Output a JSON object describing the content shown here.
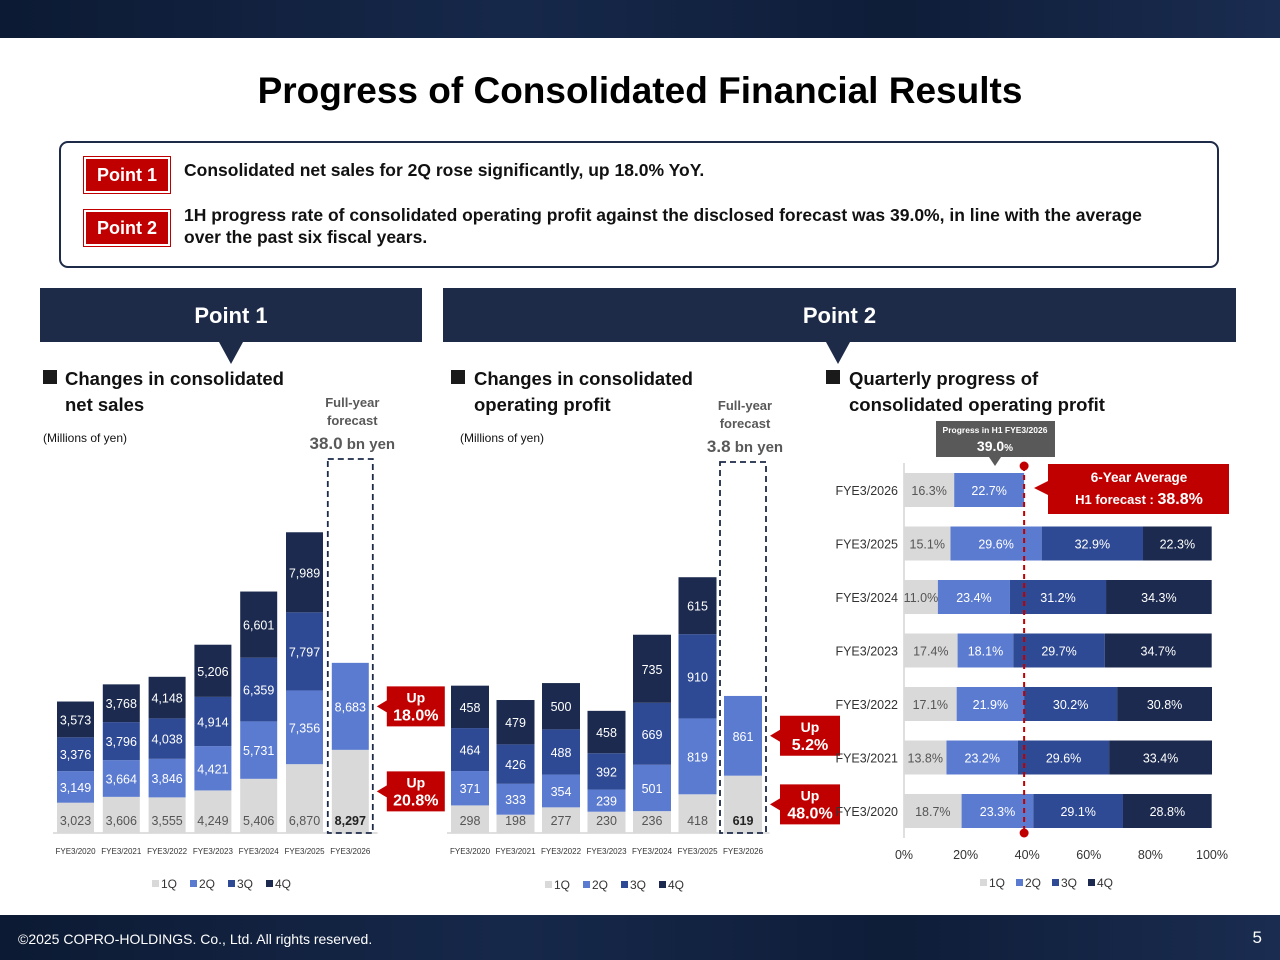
{
  "header": {
    "title": "Progress of Consolidated Financial Results"
  },
  "points": [
    {
      "tag": "Point 1",
      "text": "Consolidated net sales for 2Q rose significantly, up 18.0% YoY."
    },
    {
      "tag": "Point 2",
      "text": "1H progress rate of consolidated operating profit against the disclosed forecast was 39.0%, in line with the average over the past six fiscal years."
    }
  ],
  "bands": {
    "left": "Point 1",
    "right": "Point 2"
  },
  "sections": {
    "sales_title_1": "Changes in consolidated",
    "sales_title_2": "net sales",
    "profit_title_1": "Changes in consolidated",
    "profit_title_2": "operating profit",
    "progress_title_1": "Quarterly progress of",
    "progress_title_2": "consolidated operating profit",
    "unit": "(Millions of yen)"
  },
  "colors": {
    "q1": "#d9d9d9",
    "q2": "#5b7bd0",
    "q3": "#2f4a94",
    "q4": "#1b2a4e",
    "red": "#c00000",
    "navy": "#1d2a48"
  },
  "legend": [
    "1Q",
    "2Q",
    "3Q",
    "4Q"
  ],
  "chart_data": [
    {
      "id": "net_sales",
      "type": "bar",
      "stacked": true,
      "title": "Changes in consolidated net sales",
      "unit": "Millions of yen",
      "categories": [
        "FYE3/2020",
        "FYE3/2021",
        "FYE3/2022",
        "FYE3/2023",
        "FYE3/2024",
        "FYE3/2025",
        "FYE3/2026"
      ],
      "series": [
        {
          "name": "1Q",
          "values": [
            3023,
            3606,
            3555,
            4249,
            5406,
            6870,
            8297
          ]
        },
        {
          "name": "2Q",
          "values": [
            3149,
            3664,
            3846,
            4421,
            5731,
            7356,
            8683
          ]
        },
        {
          "name": "3Q",
          "values": [
            3376,
            3796,
            4038,
            4914,
            6359,
            7797,
            null
          ]
        },
        {
          "name": "4Q",
          "values": [
            3573,
            3768,
            4148,
            5206,
            6601,
            7989,
            null
          ]
        }
      ],
      "forecast": {
        "label_1": "Full-year",
        "label_2": "forecast",
        "value": "38.0",
        "unit": " bn yen"
      },
      "callouts": [
        {
          "line1": "Up",
          "line2": "18.0%"
        },
        {
          "line1": "Up",
          "line2": "20.8%"
        }
      ]
    },
    {
      "id": "operating_profit",
      "type": "bar",
      "stacked": true,
      "title": "Changes in consolidated operating profit",
      "unit": "Millions of yen",
      "categories": [
        "FYE3/2020",
        "FYE3/2021",
        "FYE3/2022",
        "FYE3/2023",
        "FYE3/2024",
        "FYE3/2025",
        "FYE3/2026"
      ],
      "series": [
        {
          "name": "1Q",
          "values": [
            298,
            198,
            277,
            230,
            236,
            418,
            619
          ]
        },
        {
          "name": "2Q",
          "values": [
            371,
            333,
            354,
            239,
            501,
            819,
            861
          ]
        },
        {
          "name": "3Q",
          "values": [
            464,
            426,
            488,
            392,
            669,
            910,
            null
          ]
        },
        {
          "name": "4Q",
          "values": [
            458,
            479,
            500,
            458,
            735,
            615,
            null
          ]
        }
      ],
      "forecast": {
        "label_1": "Full-year",
        "label_2": "forecast",
        "value": "3.8",
        "unit": " bn yen"
      },
      "callouts": [
        {
          "line1": "Up",
          "line2": "5.2%"
        },
        {
          "line1": "Up",
          "line2": "48.0%"
        }
      ]
    },
    {
      "id": "quarterly_progress",
      "type": "bar",
      "orientation": "horizontal",
      "stacked": true,
      "title": "Quarterly progress of consolidated operating profit",
      "categories": [
        "FYE3/2026",
        "FYE3/2025",
        "FYE3/2024",
        "FYE3/2023",
        "FYE3/2022",
        "FYE3/2021",
        "FYE3/2020"
      ],
      "series": [
        {
          "name": "1Q",
          "values": [
            16.3,
            15.1,
            11.0,
            17.4,
            17.1,
            13.8,
            18.7
          ]
        },
        {
          "name": "2Q",
          "values": [
            22.7,
            29.6,
            23.4,
            18.1,
            21.9,
            23.2,
            23.3
          ]
        },
        {
          "name": "3Q",
          "values": [
            null,
            32.9,
            31.2,
            29.7,
            30.2,
            29.6,
            29.1
          ]
        },
        {
          "name": "4Q",
          "values": [
            null,
            22.3,
            34.3,
            34.7,
            30.8,
            33.4,
            28.8
          ]
        }
      ],
      "x_ticks": [
        "0%",
        "20%",
        "40%",
        "60%",
        "80%",
        "100%"
      ],
      "xlim": [
        0,
        100
      ],
      "progress_marker": {
        "label": "Progress in H1 FYE3/2026",
        "value_text": "39.0",
        "pct": "%",
        "value": 39.0
      },
      "average_box": {
        "line1": "6-Year Average",
        "line2_prefix": "H1 forecast : ",
        "line2_value": "38.8%"
      }
    }
  ],
  "footer": {
    "copyright": "©2025 COPRO-HOLDINGS. Co., Ltd. All rights reserved.",
    "page": "5"
  }
}
